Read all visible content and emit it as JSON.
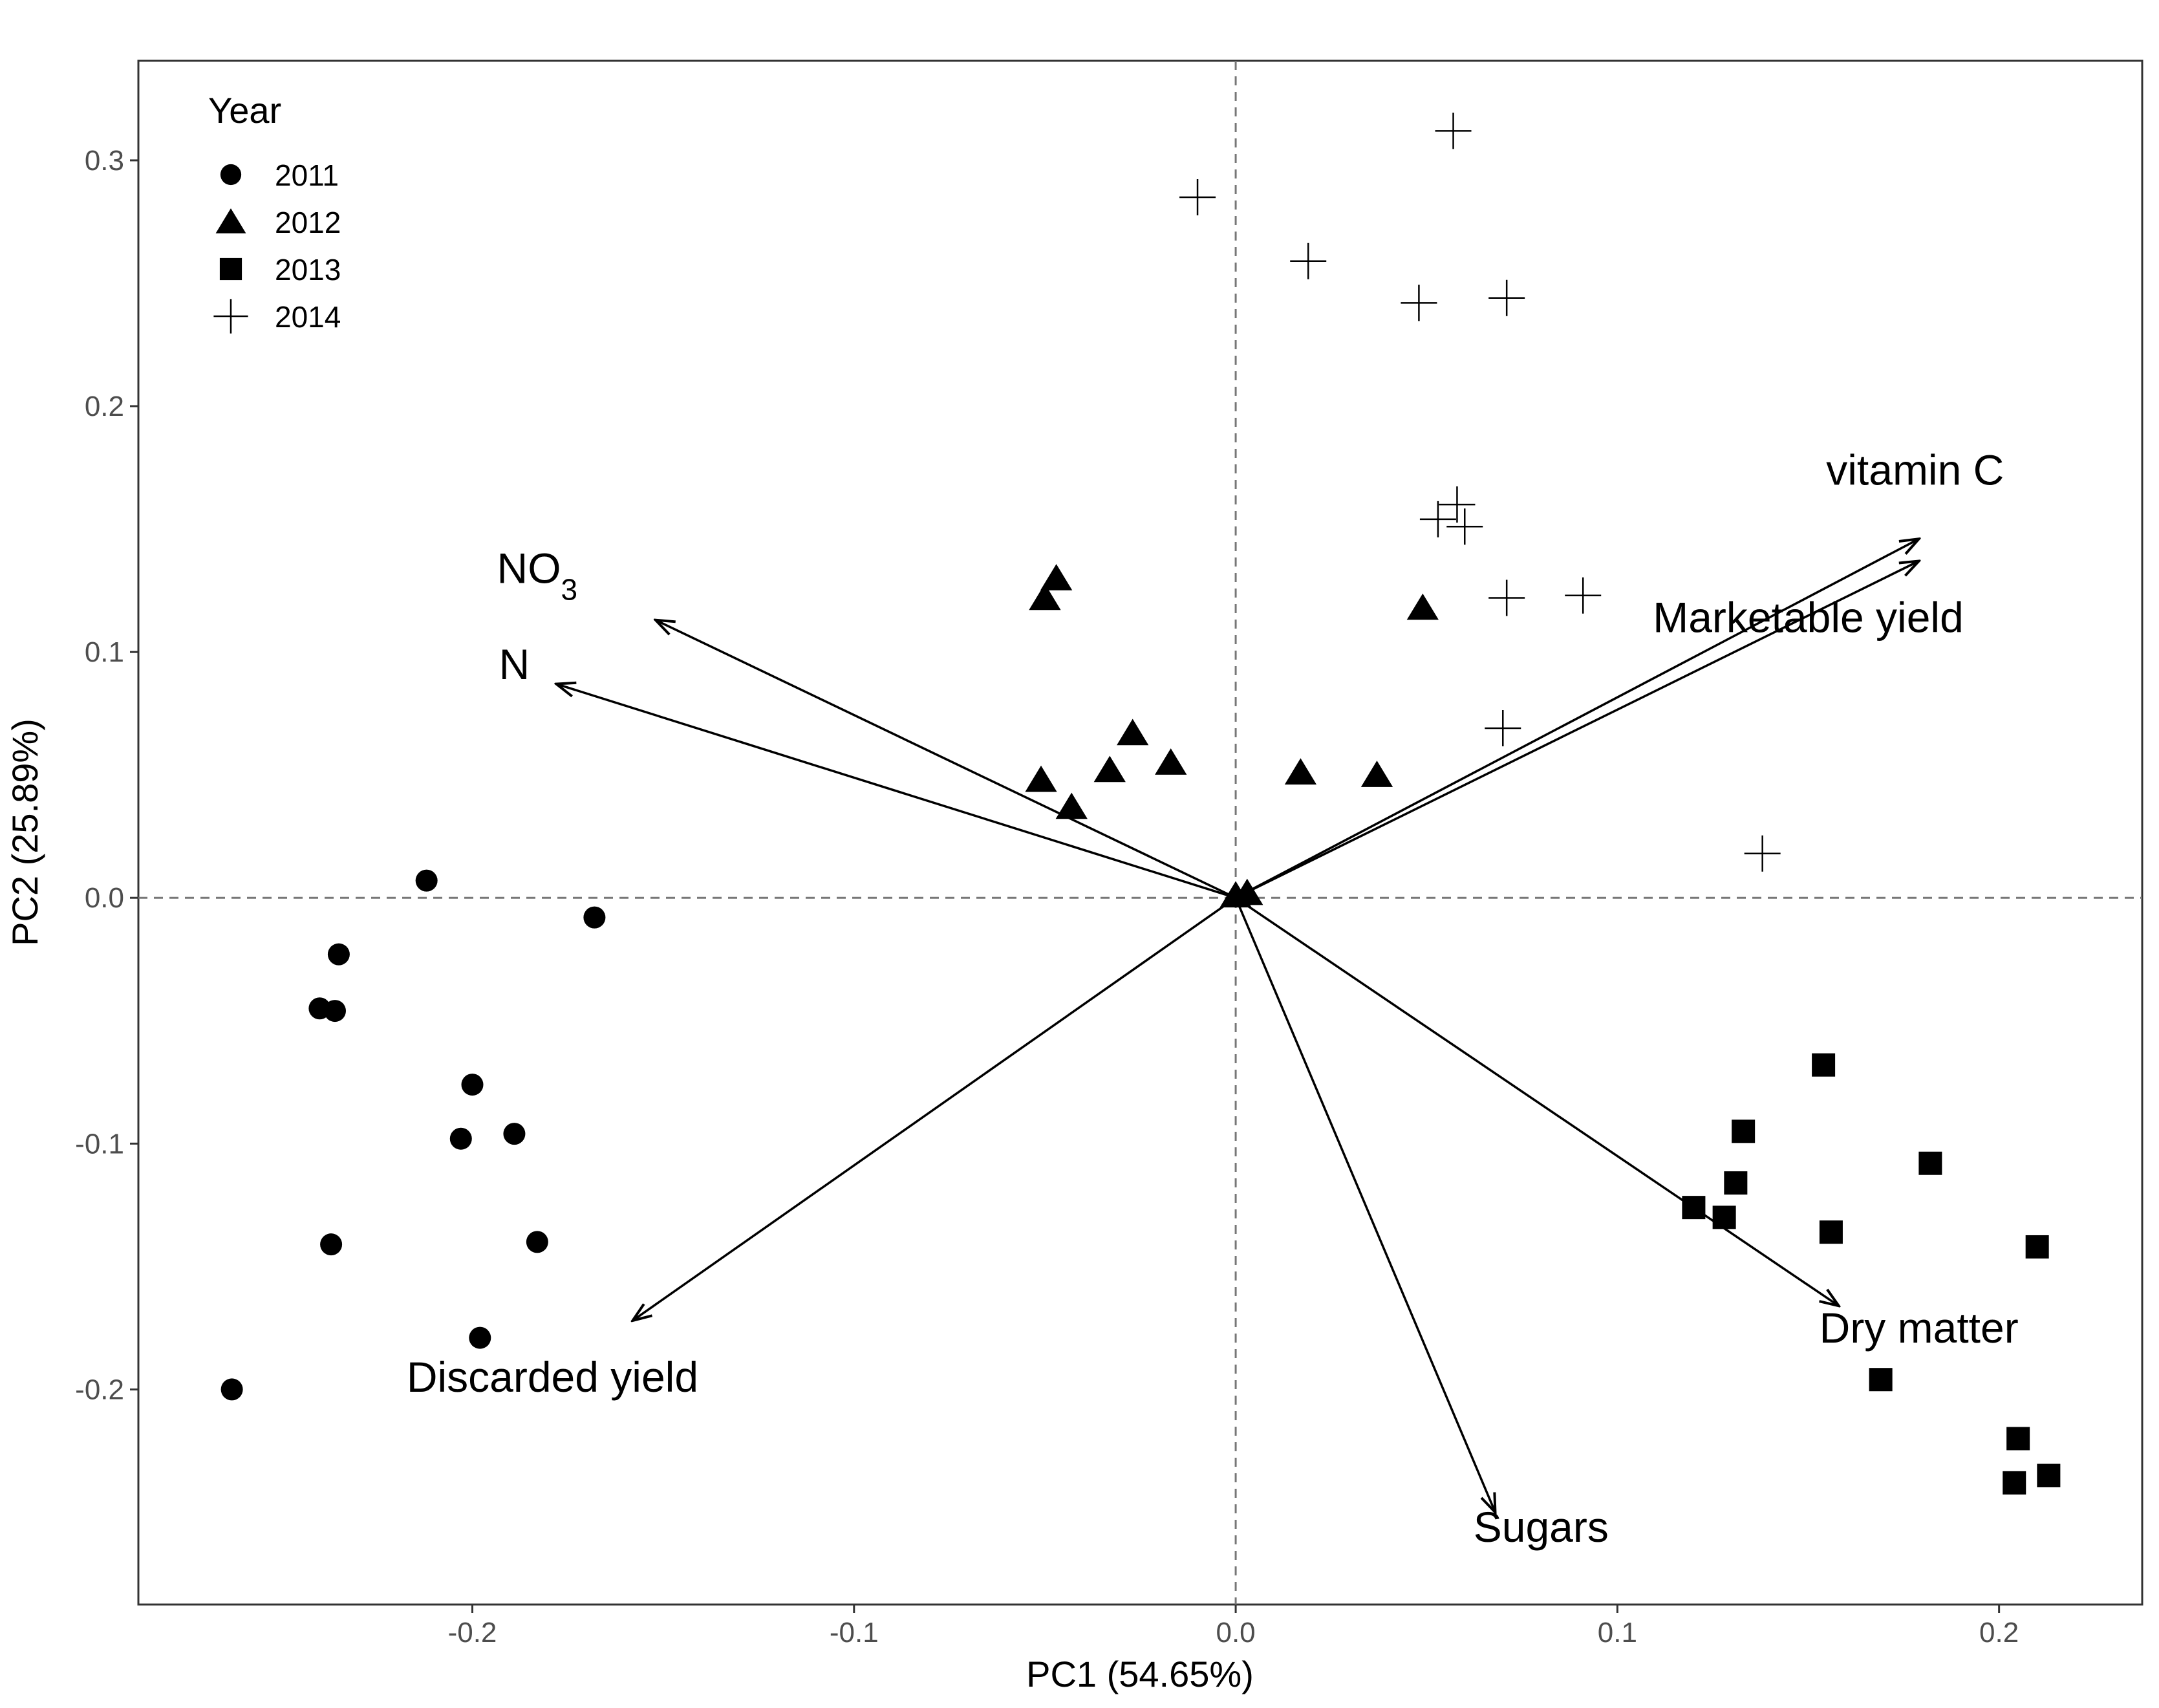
{
  "chart_data": {
    "type": "scatter",
    "subtype": "pca-biplot",
    "title": "",
    "xlabel": "PC1 (54.65%)",
    "ylabel": "PC2 (25.89%)",
    "xlim": [
      -0.2875,
      0.2375
    ],
    "ylim": [
      -0.2875,
      0.3405
    ],
    "xticks": [
      -0.2,
      -0.1,
      0.0,
      0.1,
      0.2
    ],
    "xtick_labels": [
      "-0.2",
      "-0.1",
      "0.0",
      "0.1",
      "0.2"
    ],
    "yticks": [
      -0.2,
      -0.1,
      0.0,
      0.1,
      0.2,
      0.3
    ],
    "ytick_labels": [
      "-0.2",
      "-0.1",
      "0.0",
      "0.1",
      "0.2",
      "0.3"
    ],
    "grid": false,
    "reference_lines": {
      "x": 0,
      "y": 0,
      "style": "dashed"
    },
    "legend": {
      "title": "Year",
      "position": "top-left",
      "entries": [
        {
          "label": "2011",
          "shape": "circle"
        },
        {
          "label": "2012",
          "shape": "triangle"
        },
        {
          "label": "2013",
          "shape": "square"
        },
        {
          "label": "2014",
          "shape": "plus"
        }
      ]
    },
    "series": [
      {
        "name": "2011",
        "shape": "circle",
        "points": [
          [
            -0.212,
            0.007
          ],
          [
            -0.168,
            -0.008
          ],
          [
            -0.235,
            -0.023
          ],
          [
            -0.24,
            -0.045
          ],
          [
            -0.236,
            -0.046
          ],
          [
            -0.2,
            -0.076
          ],
          [
            -0.203,
            -0.098
          ],
          [
            -0.189,
            -0.096
          ],
          [
            -0.237,
            -0.141
          ],
          [
            -0.183,
            -0.14
          ],
          [
            -0.198,
            -0.179
          ],
          [
            -0.263,
            -0.2
          ]
        ]
      },
      {
        "name": "2012",
        "shape": "triangle",
        "points": [
          [
            -0.047,
            0.13
          ],
          [
            -0.05,
            0.122
          ],
          [
            0.049,
            0.118
          ],
          [
            -0.027,
            0.067
          ],
          [
            -0.017,
            0.055
          ],
          [
            -0.033,
            0.052
          ],
          [
            -0.051,
            0.048
          ],
          [
            -0.043,
            0.037
          ],
          [
            0.017,
            0.051
          ],
          [
            0.037,
            0.05
          ],
          [
            0.003,
            0.002
          ],
          [
            0.0,
            0.001
          ]
        ]
      },
      {
        "name": "2013",
        "shape": "square",
        "points": [
          [
            0.154,
            -0.068
          ],
          [
            0.182,
            -0.108
          ],
          [
            0.133,
            -0.095
          ],
          [
            0.131,
            -0.116
          ],
          [
            0.12,
            -0.126
          ],
          [
            0.128,
            -0.13
          ],
          [
            0.156,
            -0.136
          ],
          [
            0.21,
            -0.142
          ],
          [
            0.169,
            -0.196
          ],
          [
            0.205,
            -0.22
          ],
          [
            0.213,
            -0.235
          ],
          [
            0.204,
            -0.238
          ]
        ]
      },
      {
        "name": "2014",
        "shape": "plus",
        "points": [
          [
            0.057,
            0.312
          ],
          [
            -0.01,
            0.285
          ],
          [
            0.019,
            0.259
          ],
          [
            0.048,
            0.242
          ],
          [
            0.071,
            0.244
          ],
          [
            0.058,
            0.16
          ],
          [
            0.053,
            0.154
          ],
          [
            0.06,
            0.151
          ],
          [
            0.071,
            0.122
          ],
          [
            0.091,
            0.123
          ],
          [
            0.07,
            0.069
          ],
          [
            0.138,
            0.018
          ]
        ]
      }
    ],
    "loadings": [
      {
        "name": "vitamin C",
        "x": 0.179,
        "y": 0.146,
        "label_x": 0.178,
        "label_y": 0.168
      },
      {
        "name": "Marketable yield",
        "x": 0.179,
        "y": 0.137,
        "label_x": 0.15,
        "label_y": 0.108
      },
      {
        "name": "NO3",
        "name_main": "NO",
        "name_sub": "3",
        "x": -0.152,
        "y": 0.113,
        "label_x": -0.183,
        "label_y": 0.128
      },
      {
        "name": "N",
        "x": -0.178,
        "y": 0.087,
        "label_x": -0.189,
        "label_y": 0.089
      },
      {
        "name": "Discarded yield",
        "x": -0.158,
        "y": -0.172,
        "label_x": -0.179,
        "label_y": -0.201
      },
      {
        "name": "Sugars",
        "x": 0.068,
        "y": -0.25,
        "label_x": 0.08,
        "label_y": -0.262
      },
      {
        "name": "Dry matter",
        "x": 0.158,
        "y": -0.166,
        "label_x": 0.179,
        "label_y": -0.181
      }
    ]
  }
}
